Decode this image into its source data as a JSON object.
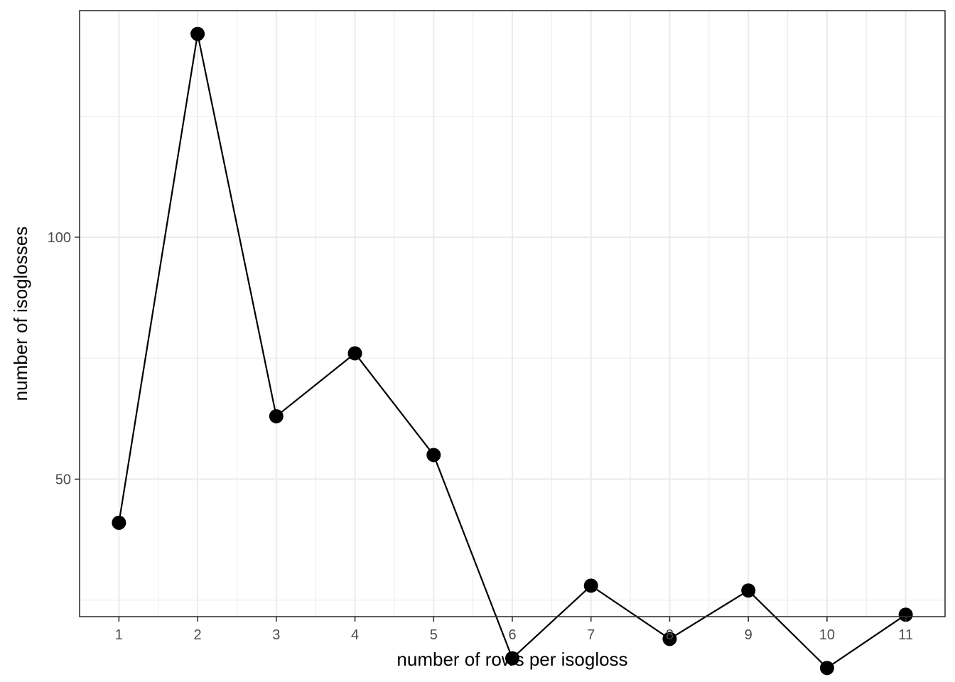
{
  "chart_data": {
    "type": "line",
    "title": "",
    "xlabel": "number of rows per isogloss",
    "ylabel": "number of isoglosses",
    "x": [
      1,
      2,
      3,
      4,
      5,
      6,
      7,
      8,
      9,
      10,
      11
    ],
    "x_ticks": [
      "1",
      "2",
      "3",
      "4",
      "5",
      "6",
      "7",
      "8",
      "9",
      "10",
      "11"
    ],
    "xlim": [
      0.5,
      11.5
    ],
    "y_ticks": [
      50,
      100
    ],
    "ylim": [
      21.6,
      146.8
    ],
    "series": [
      {
        "values": [
          41,
          142,
          63,
          76,
          55,
          13,
          28,
          17,
          27,
          11,
          22
        ]
      }
    ],
    "markers": true,
    "grid": true,
    "legend": "none",
    "colors": {
      "line": "#000000",
      "points": "#000000",
      "grid": "#ebebeb",
      "panel_border": "#333333"
    }
  }
}
